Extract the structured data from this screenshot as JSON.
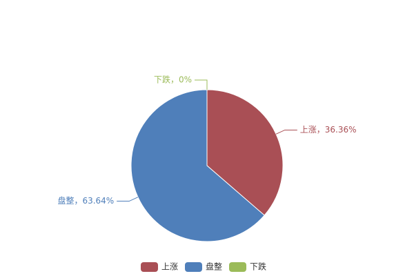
{
  "chart_data": {
    "type": "pie",
    "categories": [
      "上涨",
      "盘整",
      "下跌"
    ],
    "values": [
      36.36,
      63.64,
      0
    ],
    "value_labels": [
      "上涨，36.36%",
      "盘整，63.64%",
      "下跌，0%"
    ],
    "colors": [
      "#a94f55",
      "#4f7fba",
      "#9bbb59"
    ],
    "legend": "bottom"
  }
}
